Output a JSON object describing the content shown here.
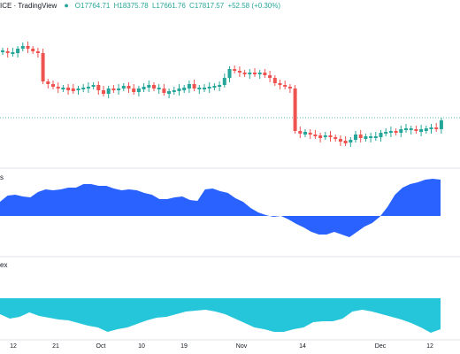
{
  "header": {
    "title": "ICE · TradingView",
    "dot_icon": "status-dot-icon",
    "open": "O17764.71",
    "high": "H18375.78",
    "low": "L17661.76",
    "close": "C17817.57",
    "change": "+52.58 (+0.30%)"
  },
  "panes": {
    "pane2_label": "s",
    "pane3_label": "ex"
  },
  "colors": {
    "up": "#26a69a",
    "down": "#ef5350",
    "blue": "#2962ff",
    "cyan": "#26c6da",
    "divider": "#e0e3eb",
    "price_line": "#26a69a"
  },
  "x_axis": {
    "ticks": [
      "12",
      "21",
      "Oct",
      "10",
      "19",
      "Nov",
      "14",
      "Dec",
      "12"
    ]
  },
  "chart_data": {
    "type": "candlestick",
    "candle_mids": [
      58,
      60,
      60,
      55,
      52,
      55,
      58,
      60,
      92,
      95,
      98,
      100,
      100,
      101,
      102,
      100,
      100,
      98,
      96,
      102,
      106,
      100,
      102,
      100,
      97,
      100,
      104,
      100,
      99,
      96,
      100,
      100,
      105,
      104,
      102,
      101,
      100,
      95,
      100,
      100,
      100,
      98,
      98,
      96,
      88,
      78,
      80,
      82,
      84,
      82,
      84,
      82,
      85,
      88,
      94,
      96,
      98,
      100,
      148,
      151,
      150,
      152,
      154,
      155,
      153,
      155,
      157,
      160,
      161,
      158,
      152,
      156,
      155,
      155,
      155,
      150,
      150,
      148,
      150,
      146,
      146,
      146,
      148,
      147,
      146,
      144,
      146,
      136
    ],
    "osc1": [
      228,
      221,
      220,
      222,
      223,
      217,
      214,
      215,
      214,
      212,
      212,
      208,
      208,
      210,
      210,
      213,
      215,
      214,
      215,
      218,
      220,
      225,
      225,
      223,
      222,
      226,
      227,
      214,
      213,
      216,
      218,
      224,
      228,
      235,
      240,
      243,
      245,
      244,
      248,
      253,
      257,
      262,
      265,
      265,
      262,
      265,
      268,
      262,
      256,
      252,
      245,
      234,
      220,
      212,
      208,
      206,
      203,
      202,
      203
    ],
    "osc2": [
      355,
      360,
      358,
      353,
      357,
      359,
      361,
      362,
      365,
      368,
      370,
      375,
      372,
      370,
      366,
      362,
      359,
      358,
      355,
      352,
      351,
      350,
      352,
      355,
      360,
      365,
      370,
      372,
      375,
      375,
      372,
      370,
      364,
      363,
      363,
      360,
      352,
      350,
      352,
      355,
      358,
      361,
      365,
      370,
      376,
      372
    ]
  }
}
